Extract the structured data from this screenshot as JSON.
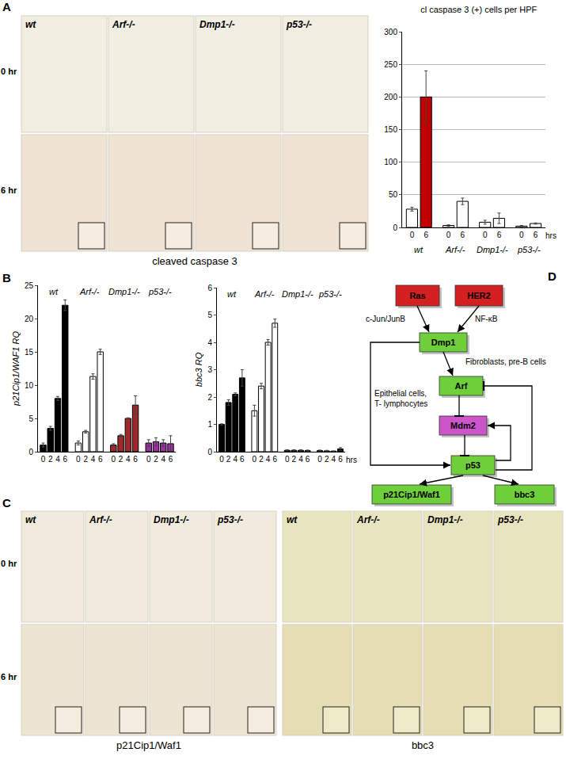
{
  "panels": {
    "A": {
      "label": "A",
      "micrographs": {
        "columns": [
          "wt",
          "Arf-/-",
          "Dmp1-/-",
          "p53-/-"
        ],
        "rows": [
          "0 hr",
          "6 hr"
        ],
        "caption": "cleaved caspase 3"
      }
    },
    "B": {
      "label": "B"
    },
    "C": {
      "label": "C",
      "micrographs": [
        {
          "columns": [
            "wt",
            "Arf-/-",
            "Dmp1-/-",
            "p53-/-"
          ],
          "rows": [
            "0 hr",
            "6 hr"
          ],
          "caption": "p21Cip1/Waf1"
        },
        {
          "columns": [
            "wt",
            "Arf-/-",
            "Dmp1-/-",
            "p53-/-"
          ],
          "rows": [
            "0 hr",
            "6 hr"
          ],
          "caption": "bbc3"
        }
      ]
    },
    "D": {
      "label": "D",
      "diagram": {
        "nodes": [
          {
            "label": "Ras",
            "color": "#d42020"
          },
          {
            "label": "HER2",
            "color": "#d42020"
          },
          {
            "label": "Dmp1",
            "color": "#6fcf3a"
          },
          {
            "label": "Arf",
            "color": "#6fcf3a"
          },
          {
            "label": "Mdm2",
            "color": "#cc55cc"
          },
          {
            "label": "p53",
            "color": "#6fcf3a"
          },
          {
            "label": "p21Cip1/Waf1",
            "color": "#6fcf3a"
          },
          {
            "label": "bbc3",
            "color": "#6fcf3a"
          }
        ],
        "edges": [
          {
            "from": 0,
            "to": 2,
            "label": "c-Jun/JunB",
            "style": "arrow"
          },
          {
            "from": 1,
            "to": 2,
            "label": "NF-κB",
            "style": "arrow"
          },
          {
            "from": 2,
            "to": 3,
            "label": "Fibroblasts, pre-B cells",
            "style": "arrow"
          },
          {
            "from": 2,
            "to": 5,
            "label": [
              "Epithelial cells,",
              "T- lymphocytes"
            ],
            "style": "arrow"
          },
          {
            "from": 3,
            "to": 4,
            "style": "bar"
          },
          {
            "from": 4,
            "to": 5,
            "style": "bar"
          },
          {
            "from": 5,
            "to": 4,
            "style": "arrow"
          },
          {
            "from": 5,
            "to": 3,
            "style": "bar"
          },
          {
            "from": 5,
            "to": 6,
            "style": "arrow"
          },
          {
            "from": 5,
            "to": 7,
            "style": "arrow"
          }
        ]
      }
    }
  },
  "chart_data": [
    {
      "panel": "A",
      "type": "bar",
      "title": "cl caspase 3 (+) cells per HPF",
      "groups": [
        "wt",
        "Arf-/-",
        "Dmp1-/-",
        "p53-/-"
      ],
      "categories": [
        "0",
        "6",
        "0",
        "6",
        "0",
        "6",
        "0",
        "6"
      ],
      "xlabel": "hrs",
      "values": [
        28,
        200,
        3,
        40,
        8,
        14,
        2,
        6
      ],
      "errors": [
        3,
        40,
        1,
        5,
        3,
        8,
        1,
        1
      ],
      "colors": [
        "#ffffff",
        "#c00000",
        "#ffffff",
        "#ffffff",
        "#ffffff",
        "#ffffff",
        "#ffffff",
        "#ffffff"
      ],
      "ylim": [
        0,
        300
      ],
      "yticks": [
        0,
        50,
        100,
        150,
        200,
        250,
        300
      ],
      "grid": true
    },
    {
      "panel": "B",
      "type": "bar",
      "ylabel": "p21Cip1/WAF1 RQ",
      "groups": [
        "wt",
        "Arf-/-",
        "Dmp1-/-",
        "p53-/-"
      ],
      "categories": [
        "0",
        "2",
        "4",
        "6",
        "0",
        "2",
        "4",
        "6",
        "0",
        "2",
        "4",
        "6",
        "0",
        "2",
        "4",
        "6"
      ],
      "values": [
        1,
        3.5,
        8,
        22,
        1.3,
        3,
        11.3,
        15,
        1,
        2.4,
        5,
        7,
        1.3,
        1.5,
        1.3,
        1.2
      ],
      "errors": [
        0.3,
        0.3,
        0.3,
        0.8,
        0.3,
        0.2,
        0.4,
        0.4,
        0.2,
        0.2,
        0.1,
        1.4,
        0.5,
        0.6,
        0.5,
        1.2
      ],
      "colors": [
        "#000000",
        "#000000",
        "#000000",
        "#000000",
        "#ffffff",
        "#ffffff",
        "#ffffff",
        "#ffffff",
        "#a0282a",
        "#a0282a",
        "#a0282a",
        "#a0282a",
        "#9b30a0",
        "#9b30a0",
        "#9b30a0",
        "#9b30a0"
      ],
      "ylim": [
        0,
        25
      ],
      "yticks": [
        0,
        5,
        10,
        15,
        20,
        25
      ],
      "grid": false
    },
    {
      "panel": "B",
      "type": "bar",
      "ylabel": "bbc3 RQ",
      "groups": [
        "wt",
        "Arf-/-",
        "Dmp1-/-",
        "p53-/-"
      ],
      "categories": [
        "0",
        "2",
        "4",
        "6",
        "0",
        "2",
        "4",
        "6",
        "0",
        "2",
        "4",
        "6",
        "0",
        "2",
        "4",
        "6"
      ],
      "xlabel": "hrs",
      "values": [
        1,
        1.8,
        2.1,
        2.7,
        1.5,
        2.4,
        4,
        4.7,
        0.05,
        0.05,
        0.05,
        0.04,
        0.04,
        0.03,
        0.02,
        0.1
      ],
      "errors": [
        0.02,
        0.1,
        0.05,
        0.3,
        0.2,
        0.1,
        0.1,
        0.15,
        0.02,
        0.02,
        0.02,
        0.02,
        0.02,
        0.02,
        0.01,
        0.05
      ],
      "colors": [
        "#000000",
        "#000000",
        "#000000",
        "#000000",
        "#ffffff",
        "#ffffff",
        "#ffffff",
        "#ffffff",
        "#000000",
        "#000000",
        "#000000",
        "#000000",
        "#000000",
        "#000000",
        "#000000",
        "#000000"
      ],
      "ylim": [
        0,
        6
      ],
      "yticks": [
        0,
        1,
        2,
        3,
        4,
        5,
        6
      ],
      "grid": false
    }
  ]
}
